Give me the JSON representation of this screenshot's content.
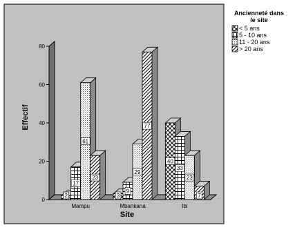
{
  "chart_data": {
    "type": "bar",
    "title": "",
    "xlabel": "Site",
    "ylabel": "Effectif",
    "ylim": [
      0,
      80
    ],
    "yticks": [
      0,
      20,
      40,
      60,
      80
    ],
    "grid": false,
    "legend_position": "right",
    "legend_title_lines": [
      "Ancienneté dans",
      "le site"
    ],
    "categories": [
      "Mampu",
      "Mbankana",
      "Ibi"
    ],
    "series": [
      {
        "name": "< 5 ans",
        "pattern": "crosshatch",
        "values": [
          2,
          3,
          40
        ],
        "labels": [
          "2",
          "3",
          "40"
        ]
      },
      {
        "name": "5 - 10 ans",
        "pattern": "grid",
        "values": [
          17,
          9,
          33
        ],
        "labels": [
          "17",
          "9",
          "33"
        ]
      },
      {
        "name": "11 - 20 ans",
        "pattern": "dots",
        "values": [
          61,
          29,
          23
        ],
        "labels": [
          "61",
          "29",
          "23"
        ]
      },
      {
        "name": "> 20 ans",
        "pattern": "diagonal",
        "values": [
          23,
          77,
          7
        ],
        "labels": [
          "23",
          "77",
          "7"
        ]
      }
    ]
  },
  "colors": {
    "plot_background": "#c0c0c0",
    "left_wall": "#707070",
    "floor": "#8c8c8c",
    "bar_outline": "#000000",
    "bar_fill": "#ffffff",
    "bar_side": "#8a8a8a",
    "bar_top": "#cfcfcf"
  }
}
